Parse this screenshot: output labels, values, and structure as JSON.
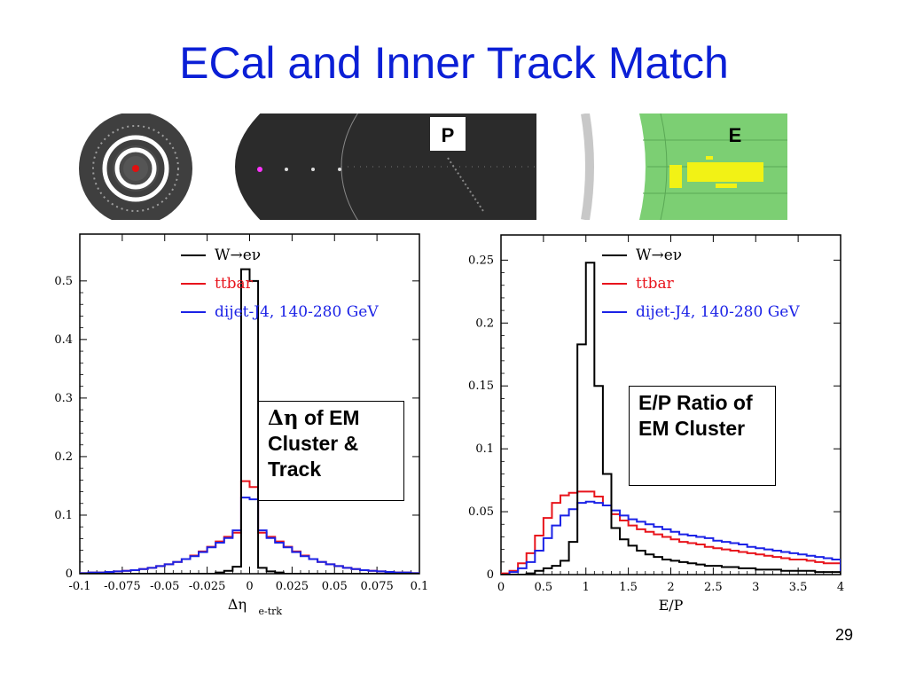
{
  "slide": {
    "title": "ECal and Inner Track Match",
    "page_number": "29",
    "event_display": {
      "label_p": "P",
      "label_e": "E"
    },
    "callout_left": {
      "symbol": "Δη",
      "rest": " of EM Cluster & Track"
    },
    "callout_right": "E/P Ratio of EM Cluster"
  },
  "colors": {
    "title": "#0b1fd6",
    "w_enu": "#000000",
    "ttbar": "#e8141c",
    "dijet": "#1b22e6"
  },
  "chart_data": [
    {
      "type": "line",
      "xlabel": "Δη",
      "xlabel_sub": "e-trk",
      "xlim": [
        -0.1,
        0.1
      ],
      "ylim": [
        0,
        0.58
      ],
      "x_ticks": [
        "-0.1",
        "-0.075",
        "-0.05",
        "-0.025",
        "0",
        "0.025",
        "0.05",
        "0.075",
        "0.1"
      ],
      "y_ticks": [
        "0",
        "0.1",
        "0.2",
        "0.3",
        "0.4",
        "0.5"
      ],
      "legend_position": "top-center",
      "bin_edges": [
        -0.1,
        -0.095,
        -0.09,
        -0.085,
        -0.08,
        -0.075,
        -0.07,
        -0.065,
        -0.06,
        -0.055,
        -0.05,
        -0.045,
        -0.04,
        -0.035,
        -0.03,
        -0.025,
        -0.02,
        -0.015,
        -0.01,
        -0.005,
        0,
        0.005,
        0.01,
        0.015,
        0.02,
        0.025,
        0.03,
        0.035,
        0.04,
        0.045,
        0.05,
        0.055,
        0.06,
        0.065,
        0.07,
        0.075,
        0.08,
        0.085,
        0.09,
        0.095,
        0.1
      ],
      "series": [
        {
          "name": "W→eν",
          "values": [
            0,
            0,
            0,
            0,
            0,
            0,
            0,
            0,
            0,
            0,
            0,
            0,
            0,
            0,
            0,
            0,
            0.002,
            0.005,
            0.012,
            0.52,
            0.5,
            0.01,
            0.004,
            0.002,
            0,
            0,
            0,
            0,
            0,
            0,
            0,
            0,
            0,
            0,
            0,
            0,
            0,
            0,
            0,
            0
          ]
        },
        {
          "name": "ttbar",
          "values": [
            0.001,
            0.002,
            0.002,
            0.003,
            0.004,
            0.005,
            0.006,
            0.008,
            0.01,
            0.013,
            0.016,
            0.02,
            0.025,
            0.031,
            0.038,
            0.046,
            0.055,
            0.063,
            0.07,
            0.158,
            0.148,
            0.07,
            0.063,
            0.055,
            0.046,
            0.038,
            0.031,
            0.025,
            0.02,
            0.016,
            0.013,
            0.01,
            0.008,
            0.006,
            0.005,
            0.004,
            0.003,
            0.002,
            0.002,
            0.001
          ]
        },
        {
          "name": "dijet-J4, 140-280 GeV",
          "values": [
            0.001,
            0.002,
            0.002,
            0.003,
            0.004,
            0.005,
            0.006,
            0.008,
            0.01,
            0.013,
            0.016,
            0.02,
            0.025,
            0.03,
            0.037,
            0.045,
            0.053,
            0.061,
            0.074,
            0.13,
            0.127,
            0.074,
            0.061,
            0.053,
            0.045,
            0.037,
            0.03,
            0.025,
            0.02,
            0.016,
            0.013,
            0.01,
            0.008,
            0.006,
            0.005,
            0.004,
            0.003,
            0.002,
            0.002,
            0.001
          ]
        }
      ]
    },
    {
      "type": "line",
      "xlabel": "E/P",
      "xlim": [
        0,
        4
      ],
      "ylim": [
        0,
        0.27
      ],
      "x_ticks": [
        "0",
        "0.5",
        "1",
        "1.5",
        "2",
        "2.5",
        "3",
        "3.5",
        "4"
      ],
      "y_ticks": [
        "0",
        "0.05",
        "0.1",
        "0.15",
        "0.2",
        "0.25"
      ],
      "legend_position": "top-center",
      "bin_edges": [
        0,
        0.1,
        0.2,
        0.3,
        0.4,
        0.5,
        0.6,
        0.7,
        0.8,
        0.9,
        1,
        1.1,
        1.2,
        1.3,
        1.4,
        1.5,
        1.6,
        1.7,
        1.8,
        1.9,
        2,
        2.1,
        2.2,
        2.3,
        2.4,
        2.5,
        2.6,
        2.7,
        2.8,
        2.9,
        3,
        3.1,
        3.2,
        3.3,
        3.4,
        3.5,
        3.6,
        3.7,
        3.8,
        3.9,
        4
      ],
      "series": [
        {
          "name": "W→eν",
          "values": [
            0,
            0,
            0,
            0.001,
            0.003,
            0.005,
            0.007,
            0.011,
            0.026,
            0.183,
            0.248,
            0.15,
            0.08,
            0.037,
            0.028,
            0.023,
            0.019,
            0.016,
            0.014,
            0.012,
            0.011,
            0.01,
            0.009,
            0.008,
            0.007,
            0.007,
            0.006,
            0.006,
            0.005,
            0.005,
            0.004,
            0.004,
            0.004,
            0.003,
            0.003,
            0.003,
            0.003,
            0.002,
            0.002,
            0.002
          ]
        },
        {
          "name": "ttbar",
          "values": [
            0.001,
            0.003,
            0.009,
            0.017,
            0.031,
            0.045,
            0.057,
            0.063,
            0.065,
            0.066,
            0.066,
            0.062,
            0.055,
            0.048,
            0.043,
            0.039,
            0.036,
            0.034,
            0.032,
            0.03,
            0.028,
            0.026,
            0.025,
            0.024,
            0.022,
            0.021,
            0.02,
            0.019,
            0.018,
            0.017,
            0.016,
            0.015,
            0.014,
            0.013,
            0.012,
            0.012,
            0.011,
            0.01,
            0.009,
            0.009
          ]
        },
        {
          "name": "dijet-J4, 140-280 GeV",
          "values": [
            0,
            0.002,
            0.005,
            0.01,
            0.019,
            0.029,
            0.039,
            0.047,
            0.052,
            0.057,
            0.058,
            0.057,
            0.055,
            0.051,
            0.047,
            0.044,
            0.042,
            0.04,
            0.038,
            0.036,
            0.034,
            0.032,
            0.031,
            0.03,
            0.029,
            0.027,
            0.026,
            0.025,
            0.024,
            0.022,
            0.021,
            0.02,
            0.019,
            0.018,
            0.017,
            0.016,
            0.015,
            0.014,
            0.013,
            0.012
          ]
        }
      ]
    }
  ]
}
